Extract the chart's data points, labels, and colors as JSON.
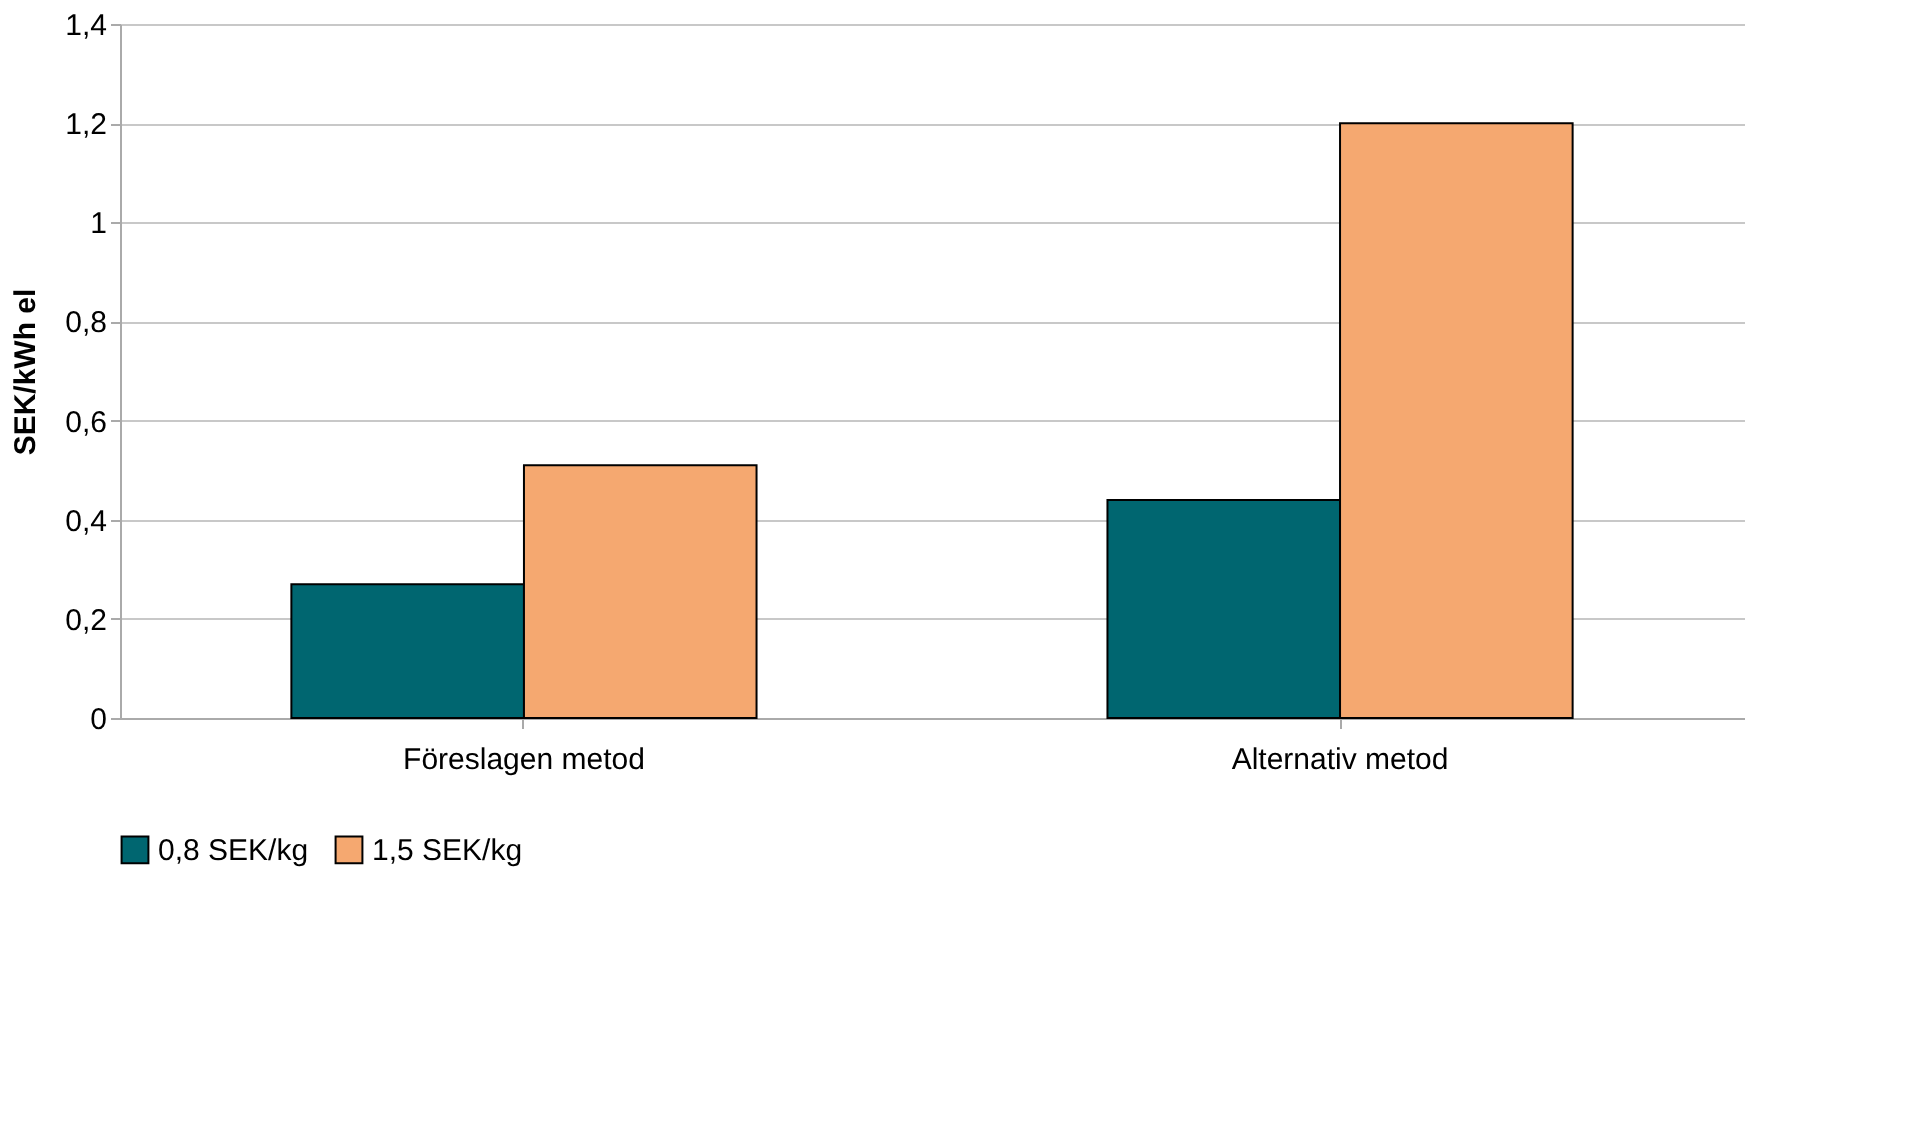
{
  "chart_data": {
    "type": "bar",
    "ylabel": "SEK/kWh el",
    "categories": [
      "Föreslagen metod",
      "Alternativ metod"
    ],
    "series": [
      {
        "name": "0,8 SEK/kg",
        "color": "#006670",
        "values": [
          0.27,
          0.44
        ]
      },
      {
        "name": "1,5 SEK/kg",
        "color": "#f5a870",
        "values": [
          0.51,
          1.2
        ]
      }
    ],
    "ylim": [
      0,
      1.4
    ],
    "yticks": [
      0,
      {
        "value": 0.2,
        "label": "0,2"
      },
      {
        "value": 0.4,
        "label": "0,4"
      },
      {
        "value": 0.6,
        "label": "0,6"
      },
      {
        "value": 0.8,
        "label": "0,8"
      },
      1,
      {
        "value": 1.2,
        "label": "1,2"
      },
      {
        "value": 1.4,
        "label": "1,4"
      }
    ],
    "grid": "y",
    "legend": "bottom"
  }
}
